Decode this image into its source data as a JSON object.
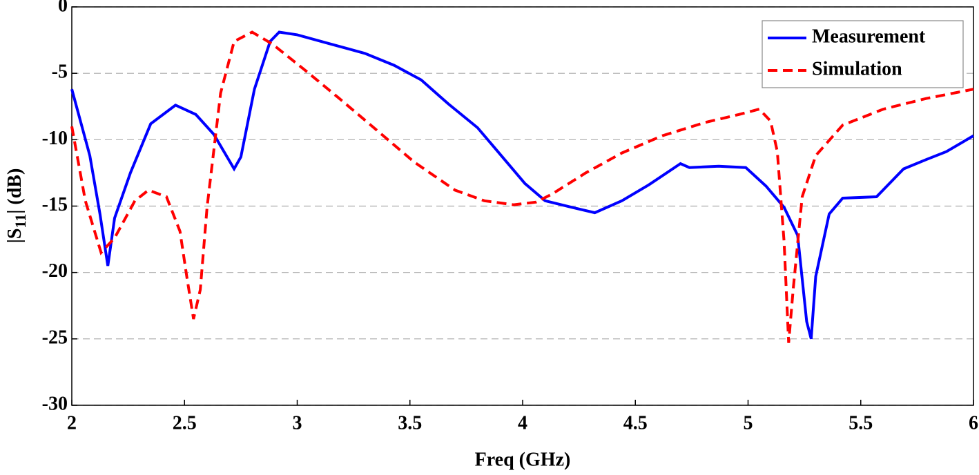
{
  "chart_data": {
    "type": "line",
    "xlabel": "Freq (GHz)",
    "ylabel": [
      "|S",
      "11",
      "| (dB)"
    ],
    "xlim": [
      2,
      6
    ],
    "xticks": [
      2,
      2.5,
      3,
      3.5,
      4,
      4.5,
      5,
      5.5,
      6
    ],
    "ylim": [
      -30,
      0
    ],
    "yticks": [
      0,
      -5,
      -10,
      -15,
      -20,
      -25,
      -30
    ],
    "grid": "y",
    "legend": "upper right",
    "series": [
      {
        "name": "Measurement",
        "color": "#0000ff",
        "linestyle": "solid",
        "x": [
          2.0,
          2.08,
          2.125,
          2.16,
          2.19,
          2.26,
          2.35,
          2.46,
          2.55,
          2.63,
          2.72,
          2.75,
          2.81,
          2.88,
          2.92,
          3.0,
          3.15,
          3.3,
          3.43,
          3.55,
          3.67,
          3.8,
          3.89,
          4.01,
          4.1,
          4.22,
          4.32,
          4.44,
          4.56,
          4.7,
          4.74,
          4.87,
          4.99,
          5.08,
          5.16,
          5.22,
          5.26,
          5.28,
          5.3,
          5.36,
          5.42,
          5.57,
          5.69,
          5.79,
          5.88,
          6.0
        ],
        "values": [
          -6.2,
          -11.2,
          -15.6,
          -19.5,
          -15.9,
          -12.5,
          -8.8,
          -7.4,
          -8.1,
          -9.6,
          -12.2,
          -11.3,
          -6.2,
          -2.6,
          -1.9,
          -2.1,
          -2.8,
          -3.5,
          -4.4,
          -5.5,
          -7.3,
          -9.1,
          -10.9,
          -13.3,
          -14.6,
          -15.1,
          -15.5,
          -14.6,
          -13.4,
          -11.8,
          -12.1,
          -12.0,
          -12.1,
          -13.5,
          -15.1,
          -17.2,
          -23.7,
          -25.0,
          -20.3,
          -15.6,
          -14.4,
          -14.3,
          -12.2,
          -11.5,
          -10.9,
          -9.7
        ]
      },
      {
        "name": "Simulation",
        "color": "#ff0000",
        "linestyle": "dashed",
        "x": [
          2.0,
          2.06,
          2.13,
          2.19,
          2.28,
          2.34,
          2.42,
          2.48,
          2.51,
          2.54,
          2.57,
          2.6,
          2.66,
          2.72,
          2.8,
          2.89,
          3.03,
          3.18,
          3.34,
          3.52,
          3.7,
          3.83,
          3.96,
          4.06,
          4.13,
          4.28,
          4.44,
          4.62,
          4.81,
          4.96,
          5.05,
          5.1,
          5.13,
          5.16,
          5.18,
          5.2,
          5.24,
          5.3,
          5.42,
          5.6,
          5.79,
          6.0
        ],
        "values": [
          -9.0,
          -14.6,
          -18.5,
          -17.4,
          -14.6,
          -13.8,
          -14.3,
          -16.9,
          -20.3,
          -23.5,
          -21.3,
          -15.1,
          -6.5,
          -2.6,
          -1.9,
          -2.8,
          -4.7,
          -6.8,
          -9.1,
          -11.7,
          -13.8,
          -14.6,
          -14.9,
          -14.7,
          -14.1,
          -12.5,
          -11.0,
          -9.7,
          -8.7,
          -8.1,
          -7.7,
          -8.6,
          -10.9,
          -17.7,
          -25.3,
          -21.3,
          -14.3,
          -11.2,
          -8.9,
          -7.7,
          -6.9,
          -6.2
        ]
      }
    ]
  }
}
